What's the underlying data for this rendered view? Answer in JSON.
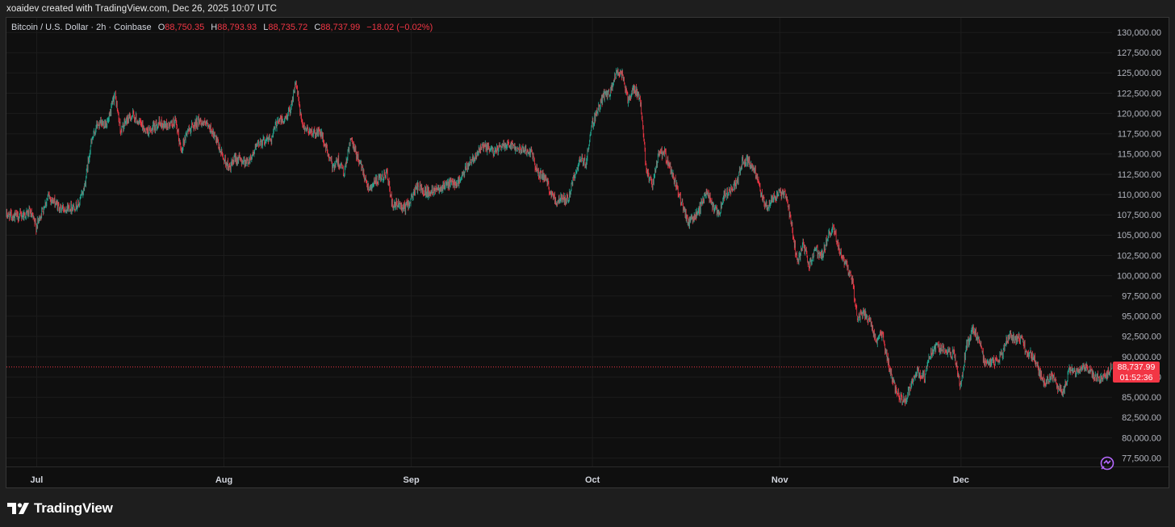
{
  "credit": "xoaidev created with TradingView.com, Dec 26, 2025 10:07 UTC",
  "legend": {
    "symbol": "Bitcoin / U.S. Dollar · 2h · Coinbase",
    "open_label": "O",
    "open": "88,750.35",
    "high_label": "H",
    "high": "88,793.93",
    "low_label": "L",
    "low": "88,735.72",
    "close_label": "C",
    "close": "88,737.99",
    "change": "−18.02 (−0.02%)"
  },
  "last_price": {
    "price": "88,737.99",
    "countdown": "01:52:36"
  },
  "brand": "TradingView",
  "colors": {
    "up": "#22ab94",
    "down": "#f23645",
    "accent": "#b668ff"
  },
  "icons": [
    "tradingview-logo-icon",
    "snapshot-eye-icon"
  ],
  "chart_data": {
    "type": "line",
    "title": "",
    "xlabel": "",
    "ylabel": "",
    "ylim": [
      76000,
      131500
    ],
    "grid": true,
    "y_ticks": [
      "130,000.00",
      "127,500.00",
      "125,000.00",
      "122,500.00",
      "120,000.00",
      "117,500.00",
      "115,000.00",
      "112,500.00",
      "110,000.00",
      "107,500.00",
      "105,000.00",
      "102,500.00",
      "100,000.00",
      "97,500.00",
      "95,000.00",
      "92,500.00",
      "90,000.00",
      "87,500.00",
      "85,000.00",
      "82,500.00",
      "80,000.00",
      "77,500.00"
    ],
    "x_ticks": [
      {
        "label": "Jul",
        "date": "2025-07-01"
      },
      {
        "label": "Aug",
        "date": "2025-08-01"
      },
      {
        "label": "Sep",
        "date": "2025-09-01"
      },
      {
        "label": "Oct",
        "date": "2025-10-01"
      },
      {
        "label": "Nov",
        "date": "2025-11-01"
      },
      {
        "label": "Dec",
        "date": "2025-12-01"
      }
    ],
    "x_range": [
      "2025-06-26",
      "2025-12-26"
    ],
    "series": [
      {
        "values": [
          [
            "2025-06-26",
            107500
          ],
          [
            "2025-06-28",
            107300
          ],
          [
            "2025-06-30",
            107800
          ],
          [
            "2025-07-01",
            106000
          ],
          [
            "2025-07-02",
            108000
          ],
          [
            "2025-07-03",
            109800
          ],
          [
            "2025-07-05",
            108300
          ],
          [
            "2025-07-07",
            108500
          ],
          [
            "2025-07-08",
            108700
          ],
          [
            "2025-07-09",
            111000
          ],
          [
            "2025-07-10",
            116000
          ],
          [
            "2025-07-11",
            118500
          ],
          [
            "2025-07-13",
            119000
          ],
          [
            "2025-07-14",
            122500
          ],
          [
            "2025-07-15",
            117800
          ],
          [
            "2025-07-16",
            119200
          ],
          [
            "2025-07-17",
            119800
          ],
          [
            "2025-07-19",
            118000
          ],
          [
            "2025-07-20",
            117800
          ],
          [
            "2025-07-21",
            118800
          ],
          [
            "2025-07-23",
            118500
          ],
          [
            "2025-07-24",
            119000
          ],
          [
            "2025-07-25",
            115500
          ],
          [
            "2025-07-26",
            117800
          ],
          [
            "2025-07-28",
            119200
          ],
          [
            "2025-07-30",
            118000
          ],
          [
            "2025-08-01",
            114500
          ],
          [
            "2025-08-02",
            113200
          ],
          [
            "2025-08-03",
            114500
          ],
          [
            "2025-08-05",
            114000
          ],
          [
            "2025-08-07",
            116500
          ],
          [
            "2025-08-09",
            117000
          ],
          [
            "2025-08-10",
            119300
          ],
          [
            "2025-08-11",
            119000
          ],
          [
            "2025-08-12",
            120500
          ],
          [
            "2025-08-13",
            123800
          ],
          [
            "2025-08-14",
            118500
          ],
          [
            "2025-08-16",
            117500
          ],
          [
            "2025-08-17",
            117800
          ],
          [
            "2025-08-19",
            113500
          ],
          [
            "2025-08-20",
            114200
          ],
          [
            "2025-08-21",
            112500
          ],
          [
            "2025-08-22",
            116800
          ],
          [
            "2025-08-24",
            113200
          ],
          [
            "2025-08-25",
            110800
          ],
          [
            "2025-08-26",
            111500
          ],
          [
            "2025-08-27",
            111800
          ],
          [
            "2025-08-28",
            112800
          ],
          [
            "2025-08-29",
            108400
          ],
          [
            "2025-08-30",
            108800
          ],
          [
            "2025-08-31",
            108300
          ],
          [
            "2025-09-01",
            109300
          ],
          [
            "2025-09-02",
            111000
          ],
          [
            "2025-09-04",
            110200
          ],
          [
            "2025-09-05",
            110800
          ],
          [
            "2025-09-07",
            111200
          ],
          [
            "2025-09-09",
            111600
          ],
          [
            "2025-09-11",
            114300
          ],
          [
            "2025-09-13",
            115900
          ],
          [
            "2025-09-15",
            115300
          ],
          [
            "2025-09-17",
            116400
          ],
          [
            "2025-09-19",
            115700
          ],
          [
            "2025-09-21",
            115200
          ],
          [
            "2025-09-22",
            112600
          ],
          [
            "2025-09-23",
            112200
          ],
          [
            "2025-09-25",
            109100
          ],
          [
            "2025-09-26",
            109600
          ],
          [
            "2025-09-27",
            109400
          ],
          [
            "2025-09-28",
            112200
          ],
          [
            "2025-09-29",
            114200
          ],
          [
            "2025-09-30",
            114000
          ],
          [
            "2025-10-01",
            118600
          ],
          [
            "2025-10-02",
            120500
          ],
          [
            "2025-10-03",
            122300
          ],
          [
            "2025-10-04",
            122400
          ],
          [
            "2025-10-05",
            125200
          ],
          [
            "2025-10-06",
            124800
          ],
          [
            "2025-10-07",
            121500
          ],
          [
            "2025-10-08",
            123200
          ],
          [
            "2025-10-09",
            121500
          ],
          [
            "2025-10-10",
            113000
          ],
          [
            "2025-10-11",
            111000
          ],
          [
            "2025-10-12",
            115000
          ],
          [
            "2025-10-13",
            115100
          ],
          [
            "2025-10-14",
            113000
          ],
          [
            "2025-10-15",
            111000
          ],
          [
            "2025-10-16",
            108500
          ],
          [
            "2025-10-17",
            106500
          ],
          [
            "2025-10-18",
            107200
          ],
          [
            "2025-10-19",
            108600
          ],
          [
            "2025-10-20",
            110500
          ],
          [
            "2025-10-21",
            108300
          ],
          [
            "2025-10-22",
            107700
          ],
          [
            "2025-10-23",
            110000
          ],
          [
            "2025-10-24",
            110800
          ],
          [
            "2025-10-25",
            111400
          ],
          [
            "2025-10-26",
            114300
          ],
          [
            "2025-10-27",
            114200
          ],
          [
            "2025-10-28",
            112900
          ],
          [
            "2025-10-29",
            110000
          ],
          [
            "2025-10-30",
            108200
          ],
          [
            "2025-10-31",
            109600
          ],
          [
            "2025-11-01",
            110200
          ],
          [
            "2025-11-02",
            110100
          ],
          [
            "2025-11-03",
            106500
          ],
          [
            "2025-11-04",
            101500
          ],
          [
            "2025-11-05",
            103800
          ],
          [
            "2025-11-06",
            101300
          ],
          [
            "2025-11-07",
            103400
          ],
          [
            "2025-11-08",
            102300
          ],
          [
            "2025-11-09",
            104700
          ],
          [
            "2025-11-10",
            106000
          ],
          [
            "2025-11-11",
            103000
          ],
          [
            "2025-11-12",
            101500
          ],
          [
            "2025-11-13",
            99700
          ],
          [
            "2025-11-14",
            94500
          ],
          [
            "2025-11-15",
            95500
          ],
          [
            "2025-11-16",
            94200
          ],
          [
            "2025-11-17",
            92000
          ],
          [
            "2025-11-18",
            92900
          ],
          [
            "2025-11-19",
            89300
          ],
          [
            "2025-11-20",
            86600
          ],
          [
            "2025-11-21",
            84800
          ],
          [
            "2025-11-22",
            84700
          ],
          [
            "2025-11-23",
            86800
          ],
          [
            "2025-11-24",
            88200
          ],
          [
            "2025-11-25",
            87400
          ],
          [
            "2025-11-26",
            90400
          ],
          [
            "2025-11-27",
            91300
          ],
          [
            "2025-11-28",
            90900
          ],
          [
            "2025-11-29",
            90600
          ],
          [
            "2025-11-30",
            90400
          ],
          [
            "2025-12-01",
            86300
          ],
          [
            "2025-12-02",
            91300
          ],
          [
            "2025-12-03",
            93400
          ],
          [
            "2025-12-04",
            92100
          ],
          [
            "2025-12-05",
            89300
          ],
          [
            "2025-12-06",
            89400
          ],
          [
            "2025-12-07",
            89300
          ],
          [
            "2025-12-08",
            90600
          ],
          [
            "2025-12-09",
            92700
          ],
          [
            "2025-12-10",
            92000
          ],
          [
            "2025-12-11",
            92500
          ],
          [
            "2025-12-12",
            90300
          ],
          [
            "2025-12-13",
            90300
          ],
          [
            "2025-12-14",
            88200
          ],
          [
            "2025-12-15",
            86500
          ],
          [
            "2025-12-16",
            87800
          ],
          [
            "2025-12-17",
            86200
          ],
          [
            "2025-12-18",
            85500
          ],
          [
            "2025-12-19",
            88200
          ],
          [
            "2025-12-20",
            88200
          ],
          [
            "2025-12-21",
            88600
          ],
          [
            "2025-12-22",
            88600
          ],
          [
            "2025-12-23",
            87700
          ],
          [
            "2025-12-24",
            87500
          ],
          [
            "2025-12-25",
            87600
          ],
          [
            "2025-12-26",
            88738
          ]
        ]
      }
    ],
    "last_value": 88737.99
  }
}
